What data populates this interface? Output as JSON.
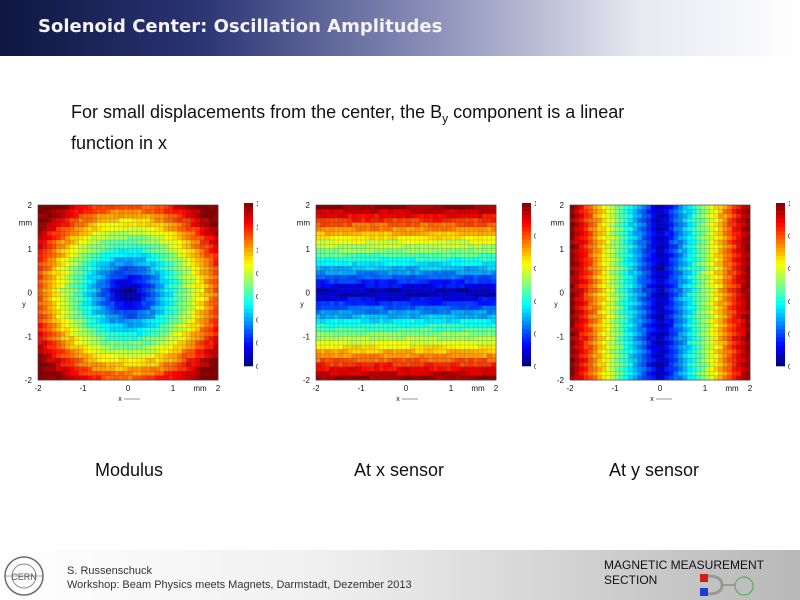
{
  "slide": {
    "title": "Solenoid Center: Oscillation Amplitudes",
    "subtitle_part1": "For small displacements from the center, the B",
    "subtitle_sub": "y",
    "subtitle_part2": " component is a linear function in x"
  },
  "captions": [
    "Modulus",
    "At x sensor",
    "At y sensor"
  ],
  "plots": [
    {
      "name": "modulus",
      "mode": "radial",
      "x_ticks": [
        "-2",
        "-1",
        "0",
        "1",
        "mm",
        "2"
      ],
      "y_ticks": [
        "2",
        "mm",
        "1",
        "0",
        "-1",
        "-2"
      ],
      "x_label": "x",
      "y_label": "y",
      "colorbar_ticks": [
        "1.4",
        "1.2",
        "1.0",
        "0.8",
        "0.6",
        "0.4",
        "0.2",
        "0.0"
      ],
      "colorbar_max": 1.4
    },
    {
      "name": "x-sensor",
      "mode": "horizontal-band",
      "x_ticks": [
        "-2",
        "-1",
        "0",
        "1",
        "mm",
        "2"
      ],
      "y_ticks": [
        "2",
        "mm",
        "1",
        "0",
        "-1",
        "-2"
      ],
      "x_label": "x",
      "y_label": "y",
      "colorbar_ticks": [
        "1.0",
        "0.8",
        "0.6",
        "0.4",
        "0.2",
        "0.0"
      ],
      "colorbar_max": 1.0
    },
    {
      "name": "y-sensor",
      "mode": "vertical-band",
      "x_ticks": [
        "-2",
        "-1",
        "0",
        "1",
        "mm",
        "2"
      ],
      "y_ticks": [
        "2",
        "mm",
        "1",
        "0",
        "-1",
        "-2"
      ],
      "x_label": "x",
      "y_label": "y",
      "colorbar_ticks": [
        "1.0",
        "0.8",
        "0.6",
        "0.4",
        "0.2",
        "0.0"
      ],
      "colorbar_max": 1.0
    }
  ],
  "footer": {
    "author": "S. Russenschuck",
    "event": "Workshop: Beam Physics meets Magnets, Darmstadt, Dezember 2013",
    "section_line1": "MAGNETIC MEASUREMENT",
    "section_line2": "SECTION",
    "logo_text": "CERN"
  },
  "colors": {
    "title_bar": "#1a2258",
    "colormap": "jet"
  }
}
